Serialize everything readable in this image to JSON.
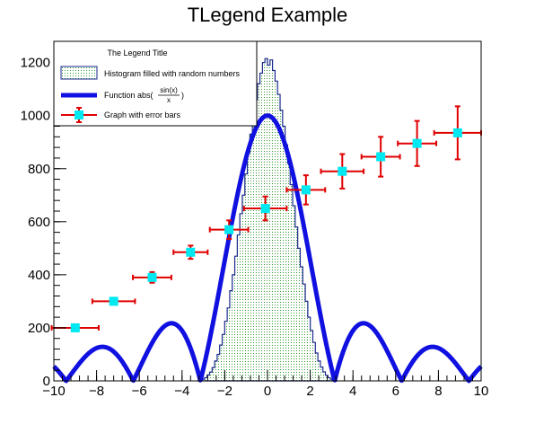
{
  "chart_data": {
    "type": "line",
    "title": "TLegend Example",
    "xlim": [
      -10,
      10
    ],
    "ylim": [
      0,
      1280
    ],
    "x_ticks": [
      -10,
      -8,
      -6,
      -4,
      -2,
      0,
      2,
      4,
      6,
      8,
      10
    ],
    "x_tick_labels": [
      "−10",
      "−8",
      "−6",
      "−4",
      "−2",
      "0",
      "2",
      "4",
      "6",
      "8",
      "10"
    ],
    "y_ticks": [
      0,
      200,
      400,
      600,
      800,
      1000,
      1200
    ],
    "y_tick_labels": [
      "0",
      "200",
      "400",
      "600",
      "800",
      "1000",
      "1200"
    ],
    "grid": false,
    "legend": {
      "title": "The Legend Title",
      "placement": "top-left",
      "entries": [
        {
          "label": "Histogram filled with random numbers",
          "kind": "hist"
        },
        {
          "label": "Function abs(",
          "frac_num": "sin(x)",
          "frac_den": "x",
          "label_close": ")",
          "kind": "function"
        },
        {
          "label": "Graph with error bars",
          "kind": "graph"
        }
      ]
    },
    "histogram": {
      "x_range": [
        -3.3,
        3.3
      ],
      "values": [
        0,
        2,
        6,
        12,
        22,
        33,
        50,
        75,
        100,
        135,
        175,
        225,
        275,
        340,
        400,
        470,
        550,
        630,
        700,
        780,
        860,
        930,
        1000,
        1060,
        1120,
        1160,
        1200,
        1215,
        1190,
        1210,
        1170,
        1130,
        1080,
        1020,
        960,
        890,
        820,
        740,
        660,
        580,
        500,
        430,
        365,
        300,
        240,
        190,
        145,
        105,
        75,
        52,
        34,
        21,
        12,
        6,
        2,
        0
      ],
      "fill_color": "#2f9a2f",
      "line_color": "#1b2a8e"
    },
    "function": {
      "expression": "1000*abs(sin(x)/x)",
      "color": "#1010e0"
    },
    "graph": {
      "x": [
        -9.0,
        -7.2,
        -5.4,
        -3.6,
        -1.8,
        -0.1,
        1.8,
        3.5,
        5.3,
        7.0,
        8.9
      ],
      "y": [
        200,
        300,
        390,
        485,
        570,
        650,
        720,
        790,
        845,
        895,
        935
      ],
      "ex": [
        1.1,
        1.0,
        0.9,
        0.8,
        0.9,
        1.0,
        0.9,
        1.0,
        0.9,
        0.9,
        1.1
      ],
      "ey": [
        0,
        0,
        20,
        25,
        35,
        45,
        55,
        65,
        75,
        85,
        100
      ],
      "marker_color": "#00e8f0",
      "error_color": "#e00000"
    }
  }
}
